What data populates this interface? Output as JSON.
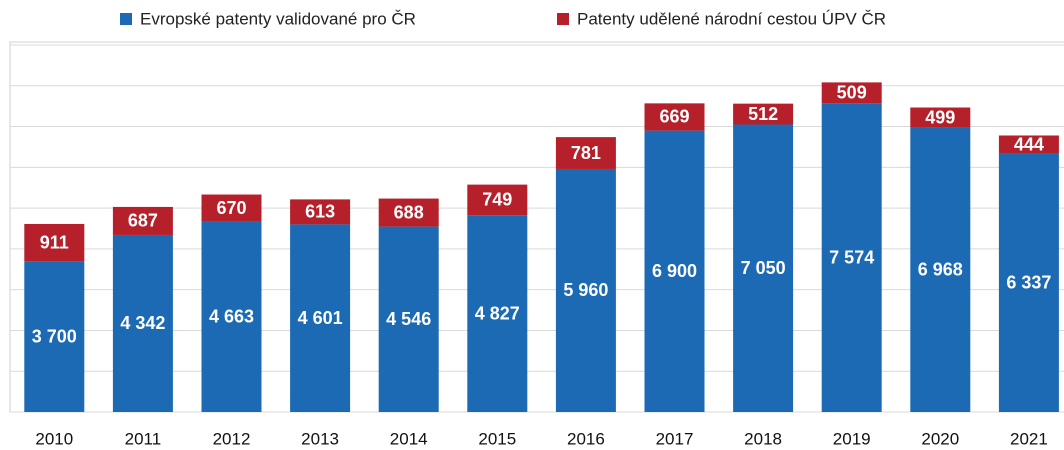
{
  "chart_data": {
    "type": "stacked_bar",
    "categories": [
      "2010",
      "2011",
      "2012",
      "2013",
      "2014",
      "2015",
      "2016",
      "2017",
      "2018",
      "2019",
      "2020",
      "2021"
    ],
    "series": [
      {
        "name": "Evropské patenty validované pro ČR",
        "color": "#1c6ab4",
        "values": [
          3700,
          4342,
          4663,
          4601,
          4546,
          4827,
          5960,
          6900,
          7050,
          7574,
          6968,
          6337
        ],
        "value_labels": [
          "3 700",
          "4 342",
          "4 663",
          "4 601",
          "4 546",
          "4 827",
          "5 960",
          "6 900",
          "7 050",
          "7 574",
          "6 968",
          "6 337"
        ]
      },
      {
        "name": "Patenty udělené národní cestou ÚPV ČR",
        "color": "#b5202a",
        "values": [
          911,
          687,
          670,
          613,
          688,
          749,
          781,
          669,
          512,
          509,
          499,
          444
        ]
      }
    ],
    "ylim": [
      0,
      9000
    ],
    "yticks": [
      0,
      1000,
      2000,
      3000,
      4000,
      5000,
      6000,
      7000,
      8000,
      9000
    ],
    "grid": true,
    "legend": "top"
  }
}
